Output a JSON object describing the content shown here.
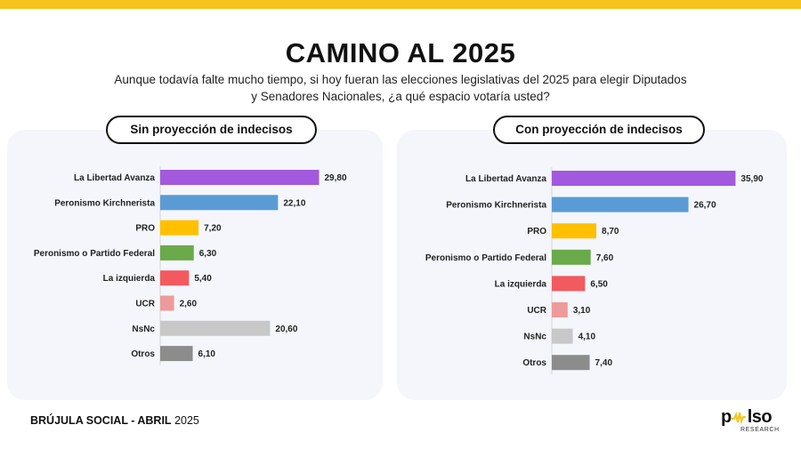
{
  "header": {
    "title": "CAMINO AL 2025",
    "subtitle_line1": "Aunque todavía falte mucho tiempo, si hoy fueran las elecciones legislativas del 2025 para elegir Diputados",
    "subtitle_line2": "y Senadores Nacionales, ¿a qué espacio votaría usted?"
  },
  "footer": {
    "label_bold": "BRÚJULA SOCIAL - ABRIL",
    "label_year": "2025"
  },
  "logo": {
    "word_start": "p",
    "word_end": "lso",
    "sub": "RESEARCH"
  },
  "colors": {
    "La Libertad Avanza": "#a259dd",
    "Peronismo Kirchnerista": "#5b9bd5",
    "PRO": "#ffc000",
    "Peronismo o Partido Federal": "#6aaa4a",
    "La izquierda": "#f25a5f",
    "UCR": "#ee9a9a",
    "NsNc": "#c8c8c8",
    "Otros": "#8c8c8c"
  },
  "chart_data": [
    {
      "type": "bar",
      "orientation": "horizontal",
      "title": "Sin proyección de indecisos",
      "categories": [
        "La Libertad Avanza",
        "Peronismo Kirchnerista",
        "PRO",
        "Peronismo o Partido Federal",
        "La izquierda",
        "UCR",
        "NsNc",
        "Otros"
      ],
      "values": [
        29.8,
        22.1,
        7.2,
        6.3,
        5.4,
        2.6,
        20.6,
        6.1
      ],
      "value_labels": [
        "29,80",
        "22,10",
        "7,20",
        "6,30",
        "5,40",
        "2,60",
        "20,60",
        "6,10"
      ],
      "grid": false,
      "legend": "none"
    },
    {
      "type": "bar",
      "orientation": "horizontal",
      "title": "Con proyección de indecisos",
      "categories": [
        "La Libertad Avanza",
        "Peronismo Kirchnerista",
        "PRO",
        "Peronismo o Partido Federal",
        "La izquierda",
        "UCR",
        "NsNc",
        "Otros"
      ],
      "values": [
        35.9,
        26.7,
        8.7,
        7.6,
        6.5,
        3.1,
        4.1,
        7.4
      ],
      "value_labels": [
        "35,90",
        "26,70",
        "8,70",
        "7,60",
        "6,50",
        "3,10",
        "4,10",
        "7,40"
      ],
      "grid": false,
      "legend": "none"
    }
  ]
}
